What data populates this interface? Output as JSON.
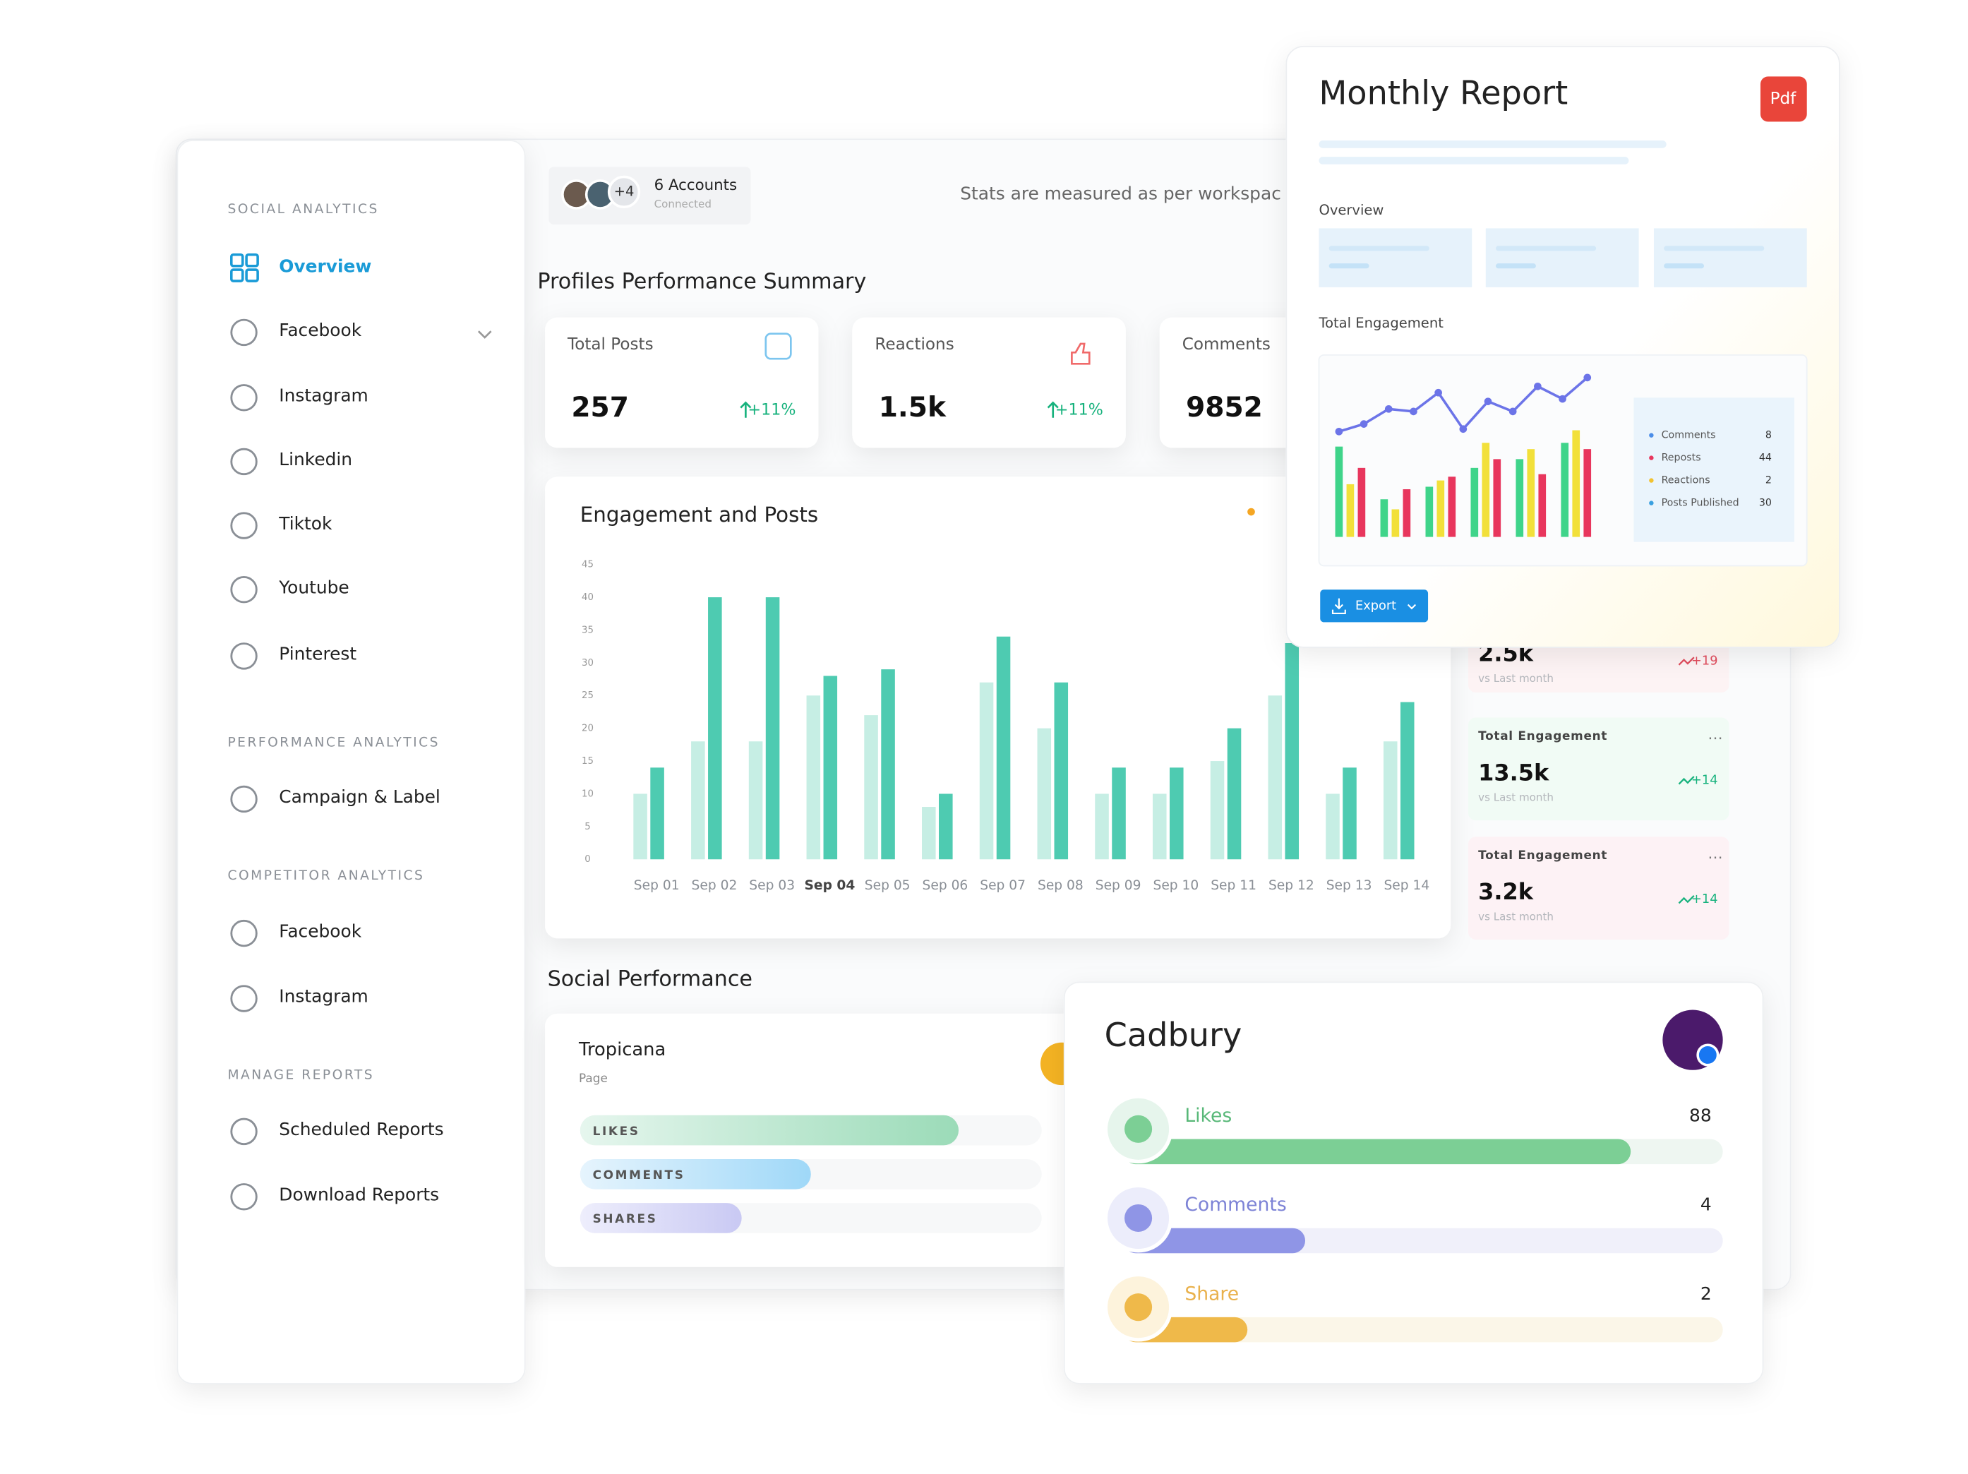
{
  "sidebar": {
    "sections": [
      {
        "title": "SOCIAL ANALYTICS",
        "items": [
          "Overview",
          "Facebook",
          "Instagram",
          "Linkedin",
          "Tiktok",
          "Youtube",
          "Pinterest"
        ]
      },
      {
        "title": "PERFORMANCE ANALYTICS",
        "items": [
          "Campaign & Label"
        ]
      },
      {
        "title": "COMPETITOR ANALYTICS",
        "items": [
          "Facebook",
          "Instagram"
        ]
      },
      {
        "title": "MANAGE REPORTS",
        "items": [
          "Scheduled Reports",
          "Download Reports"
        ]
      }
    ]
  },
  "header": {
    "accounts_extra": "+4",
    "accounts": "6 Accounts",
    "accounts_status": "Connected",
    "note": "Stats are measured as per workspac"
  },
  "summary": {
    "title": "Profiles Performance Summary",
    "cards": [
      {
        "label": "Total Posts",
        "value": "257",
        "change": "+11%"
      },
      {
        "label": "Reactions",
        "value": "1.5k",
        "change": "+11%"
      },
      {
        "label": "Comments",
        "value": "9852"
      }
    ]
  },
  "chart_data": {
    "type": "bar",
    "title": "Engagement and Posts",
    "categories": [
      "Sep 01",
      "Sep 02",
      "Sep 03",
      "Sep 04",
      "Sep 05",
      "Sep 06",
      "Sep 07",
      "Sep 08",
      "Sep 09",
      "Sep 10",
      "Sep 11",
      "Sep 12",
      "Sep 13",
      "Sep 14"
    ],
    "series": [
      {
        "color": "#c6eee4",
        "values": [
          10,
          18,
          18,
          25,
          22,
          8,
          27,
          20,
          10,
          10,
          15,
          25,
          10,
          18
        ]
      },
      {
        "color": "#4ecbb1",
        "values": [
          14,
          40,
          40,
          28,
          29,
          10,
          34,
          27,
          14,
          14,
          20,
          33,
          14,
          24
        ]
      }
    ],
    "ylim": [
      0,
      45
    ],
    "yticks": [
      0,
      5,
      10,
      15,
      20,
      25,
      30,
      35,
      40,
      45
    ],
    "grid": false
  },
  "stat_cards": [
    {
      "value": "2.5k",
      "change": "+19",
      "note": "vs Last month"
    },
    {
      "title": "Total Engagement",
      "value": "13.5k",
      "change": "+14",
      "note": "vs Last month"
    },
    {
      "title": "Total Engagement",
      "value": "3.2k",
      "change": "+14",
      "note": "vs Last month"
    }
  ],
  "social_performance": {
    "title": "Social Performance",
    "profile": "Tropicana",
    "profile_type": "Page",
    "metrics": [
      {
        "label": "LIKES",
        "value": 82
      },
      {
        "label": "COMMENTS",
        "value": 50
      },
      {
        "label": "SHARES",
        "value": 35
      }
    ]
  },
  "cadbury": {
    "title": "Cadbury",
    "metrics": [
      {
        "label": "Likes",
        "value": 88
      },
      {
        "label": "Comments",
        "value": 4
      },
      {
        "label": "Share",
        "value": 2
      }
    ]
  },
  "monthly_report": {
    "title": "Monthly Report",
    "badge": "Pdf",
    "overview": "Overview",
    "engagement": "Total Engagement",
    "export": "Export",
    "legend": [
      {
        "label": "Comments",
        "value": 8,
        "color": "#4b8de8"
      },
      {
        "label": "Reposts",
        "value": 44,
        "color": "#e8365d"
      },
      {
        "label": "Reactions",
        "value": 2,
        "color": "#f2c230"
      },
      {
        "label": "Posts Published",
        "value": 30,
        "color": "#3aa0e0"
      }
    ],
    "line": [
      16,
      22,
      34,
      32,
      47,
      18,
      40,
      32,
      52,
      42,
      59
    ],
    "bars": [
      {
        "color": "#3fd48a",
        "values": [
          72,
          30,
          40,
          55,
          62,
          75
        ]
      },
      {
        "color": "#f2e03a",
        "values": [
          42,
          22,
          45,
          75,
          70,
          85
        ]
      },
      {
        "color": "#e8365d",
        "values": [
          55,
          38,
          48,
          62,
          50,
          70
        ]
      }
    ]
  }
}
